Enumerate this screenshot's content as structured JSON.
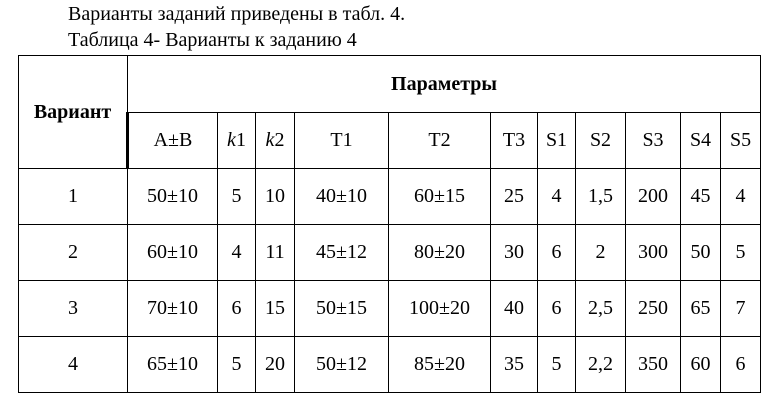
{
  "document": {
    "line1": "Варианты заданий приведены в табл. 4.",
    "line2": "Таблица 4- Варианты к заданию 4",
    "table": {
      "variant_header": "Вариант",
      "group_header": "Параметры",
      "columns": [
        "A±B",
        "k1",
        "k2",
        "T1",
        "T2",
        "T3",
        "S1",
        "S2",
        "S3",
        "S4",
        "S5"
      ],
      "rows": [
        [
          "1",
          "50±10",
          "5",
          "10",
          "40±10",
          "60±15",
          "25",
          "4",
          "1,5",
          "200",
          "45",
          "4"
        ],
        [
          "2",
          "60±10",
          "4",
          "11",
          "45±12",
          "80±20",
          "30",
          "6",
          "2",
          "300",
          "50",
          "5"
        ],
        [
          "3",
          "70±10",
          "6",
          "15",
          "50±15",
          "100±20",
          "40",
          "6",
          "2,5",
          "250",
          "65",
          "7"
        ],
        [
          "4",
          "65±10",
          "5",
          "20",
          "50±12",
          "85±20",
          "35",
          "5",
          "2,2",
          "350",
          "60",
          "6"
        ]
      ]
    }
  }
}
